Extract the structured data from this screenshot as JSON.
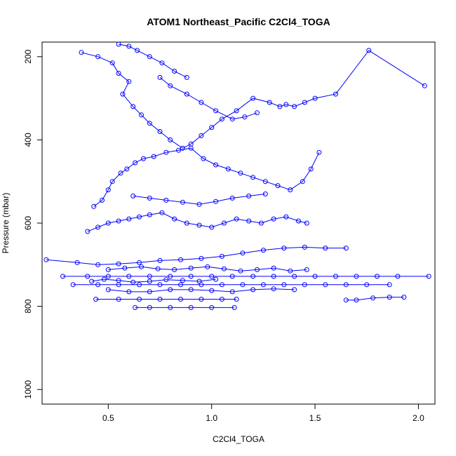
{
  "chart_data": {
    "type": "line",
    "title": "ATOM1 Northeast_Pacific C2Cl4_TOGA",
    "xlabel": "C2Cl4_TOGA",
    "ylabel": "Pressure (mbar)",
    "xlim": [
      0.18,
      2.08
    ],
    "ylim": [
      1035,
      165
    ],
    "y_reversed": true,
    "grid": false,
    "series_color": "#0000ff",
    "xticks": [
      0.5,
      1.0,
      1.5,
      2.0
    ],
    "xtick_labels": [
      "0.5",
      "1.0",
      "1.5",
      "2.0"
    ],
    "yticks": [
      200,
      400,
      600,
      800,
      1000
    ],
    "ytick_labels": [
      "200",
      "400",
      "600",
      "800",
      "1000"
    ],
    "series": [
      {
        "x": [
          0.37,
          0.45,
          0.52,
          0.55,
          0.6,
          0.57,
          0.62,
          0.66,
          0.7,
          0.75,
          0.8,
          0.86,
          0.9,
          0.95,
          1.0,
          1.05,
          1.12,
          1.2,
          1.28,
          1.33,
          1.36,
          1.4,
          1.45,
          1.5,
          1.6,
          1.76,
          2.03
        ],
        "y": [
          190,
          200,
          215,
          240,
          260,
          290,
          320,
          340,
          360,
          380,
          400,
          420,
          410,
          390,
          370,
          350,
          330,
          300,
          310,
          320,
          315,
          320,
          310,
          300,
          290,
          185,
          270
        ]
      },
      {
        "x": [
          0.43,
          0.47,
          0.5,
          0.52,
          0.56,
          0.59,
          0.63,
          0.67,
          0.72,
          0.78,
          0.84,
          0.9,
          0.96,
          1.02,
          1.08,
          1.14,
          1.2,
          1.26,
          1.32,
          1.38,
          1.44,
          1.48,
          1.52
        ],
        "y": [
          560,
          545,
          520,
          500,
          480,
          470,
          455,
          445,
          440,
          430,
          425,
          420,
          445,
          460,
          470,
          480,
          490,
          500,
          510,
          520,
          500,
          470,
          430
        ]
      },
      {
        "x": [
          0.4,
          0.45,
          0.5,
          0.55,
          0.6,
          0.65,
          0.7,
          0.76,
          0.82,
          0.88,
          0.94,
          1.0,
          1.06,
          1.12,
          1.18,
          1.24,
          1.3,
          1.36,
          1.42,
          1.46
        ],
        "y": [
          620,
          610,
          600,
          595,
          590,
          585,
          580,
          575,
          590,
          600,
          605,
          610,
          600,
          590,
          595,
          600,
          590,
          585,
          595,
          600
        ]
      },
      {
        "x": [
          0.2,
          0.35,
          0.45,
          0.55,
          0.65,
          0.75,
          0.85,
          0.95,
          1.05,
          1.15,
          1.25,
          1.35,
          1.45,
          1.55,
          1.65
        ],
        "y": [
          688,
          695,
          700,
          698,
          695,
          690,
          688,
          685,
          680,
          672,
          665,
          660,
          658,
          660,
          660
        ]
      },
      {
        "x": [
          0.28,
          0.4,
          0.5,
          0.6,
          0.7,
          0.8,
          0.9,
          1.0,
          1.1,
          1.2,
          1.3,
          1.4,
          1.5,
          1.6,
          1.7,
          1.8,
          1.9,
          2.05
        ],
        "y": [
          728,
          728,
          728,
          728,
          728,
          728,
          728,
          728,
          728,
          728,
          728,
          728,
          728,
          728,
          728,
          728,
          728,
          728
        ]
      },
      {
        "x": [
          0.33,
          0.45,
          0.55,
          0.65,
          0.75,
          0.85,
          0.95,
          1.05,
          1.15,
          1.25,
          1.35,
          1.45,
          1.55,
          1.65,
          1.75,
          1.86
        ],
        "y": [
          748,
          748,
          748,
          748,
          748,
          748,
          748,
          748,
          748,
          748,
          748,
          748,
          748,
          748,
          748,
          748
        ]
      },
      {
        "x": [
          0.44,
          0.55,
          0.65,
          0.75,
          0.85,
          0.95,
          1.05,
          1.12
        ],
        "y": [
          783,
          783,
          783,
          783,
          783,
          783,
          783,
          783
        ]
      },
      {
        "x": [
          0.63,
          0.7,
          0.8,
          0.9,
          1.0,
          1.11
        ],
        "y": [
          803,
          803,
          803,
          803,
          803,
          803
        ]
      },
      {
        "x": [
          1.65,
          1.7,
          1.78,
          1.86,
          1.93
        ],
        "y": [
          785,
          785,
          780,
          778,
          778
        ]
      },
      {
        "x": [
          0.5,
          0.6,
          0.7,
          0.8,
          0.9,
          1.0,
          1.1,
          1.2,
          1.3,
          1.4
        ],
        "y": [
          760,
          765,
          765,
          760,
          760,
          762,
          765,
          760,
          758,
          760
        ]
      },
      {
        "x": [
          0.42,
          0.48,
          0.55,
          0.62,
          0.7,
          0.78,
          0.86,
          0.94,
          1.02
        ],
        "y": [
          740,
          735,
          738,
          742,
          740,
          736,
          738,
          740,
          735
        ]
      },
      {
        "x": [
          0.5,
          0.58,
          0.66,
          0.74,
          0.82,
          0.9,
          0.98,
          1.06,
          1.14,
          1.22,
          1.3,
          1.38,
          1.46
        ],
        "y": [
          712,
          708,
          705,
          710,
          712,
          708,
          705,
          710,
          715,
          712,
          708,
          715,
          712
        ]
      },
      {
        "x": [
          0.62,
          0.7,
          0.78,
          0.86,
          0.94,
          1.02,
          1.1,
          1.18,
          1.26
        ],
        "y": [
          535,
          540,
          545,
          550,
          555,
          548,
          540,
          535,
          530
        ]
      },
      {
        "x": [
          0.75,
          0.8,
          0.88,
          0.95,
          1.02,
          1.1,
          1.16,
          1.22
        ],
        "y": [
          250,
          270,
          290,
          310,
          330,
          350,
          345,
          335
        ]
      },
      {
        "x": [
          0.55,
          0.6,
          0.64,
          0.7,
          0.76,
          0.82,
          0.88
        ],
        "y": [
          170,
          175,
          185,
          200,
          215,
          235,
          250
        ]
      }
    ]
  }
}
